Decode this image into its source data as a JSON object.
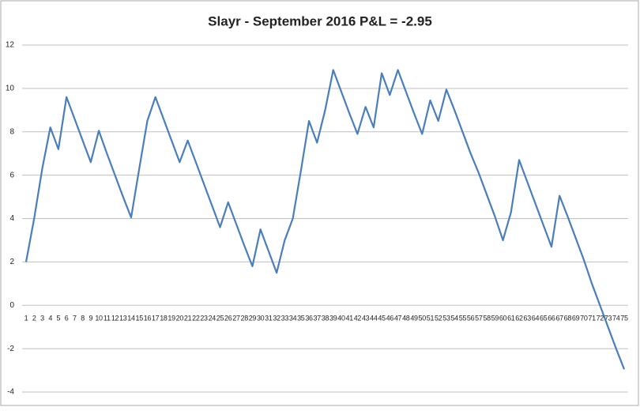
{
  "chart_data": {
    "type": "line",
    "title": "Slayr - September 2016  P&L = -2.95",
    "categories": [
      "1",
      "2",
      "3",
      "4",
      "5",
      "6",
      "7",
      "8",
      "9",
      "10",
      "11",
      "12",
      "13",
      "14",
      "15",
      "16",
      "17",
      "18",
      "19",
      "20",
      "21",
      "22",
      "23",
      "24",
      "25",
      "26",
      "27",
      "28",
      "29",
      "30",
      "31",
      "32",
      "33",
      "34",
      "35",
      "36",
      "37",
      "38",
      "39",
      "40",
      "41",
      "42",
      "43",
      "44",
      "45",
      "46",
      "47",
      "48",
      "49",
      "50",
      "51",
      "52",
      "53",
      "54",
      "55",
      "56",
      "57",
      "58",
      "59",
      "60",
      "61",
      "62",
      "63",
      "64",
      "65",
      "66",
      "67",
      "68",
      "69",
      "70",
      "71",
      "72",
      "73",
      "74",
      "75"
    ],
    "series": [
      {
        "name": "P&L",
        "color": "#4a7ebb",
        "values": [
          2,
          4,
          6.3,
          8.2,
          7.2,
          9.6,
          8.6,
          7.6,
          6.6,
          8.05,
          7,
          6,
          5,
          4.05,
          6.3,
          8.5,
          9.6,
          8.6,
          7.6,
          6.6,
          7.6,
          6.6,
          5.6,
          4.6,
          3.6,
          4.75,
          3.75,
          2.75,
          1.8,
          3.5,
          2.5,
          1.5,
          3,
          4,
          6.2,
          8.5,
          7.5,
          9,
          10.85,
          9.85,
          8.85,
          7.9,
          9.15,
          8.2,
          10.7,
          9.7,
          10.85,
          9.85,
          8.85,
          7.9,
          9.45,
          8.5,
          9.95,
          9,
          8,
          7,
          6.1,
          5.1,
          4.1,
          3,
          4.3,
          6.7,
          5.7,
          4.7,
          3.7,
          2.7,
          5.05,
          4.1,
          3.1,
          2.1,
          1,
          0,
          -1,
          -2,
          -2.95
        ]
      }
    ],
    "ylim": [
      -4,
      12
    ],
    "yticks": [
      -4,
      -2,
      0,
      2,
      4,
      6,
      8,
      10,
      12
    ],
    "grid": true
  }
}
